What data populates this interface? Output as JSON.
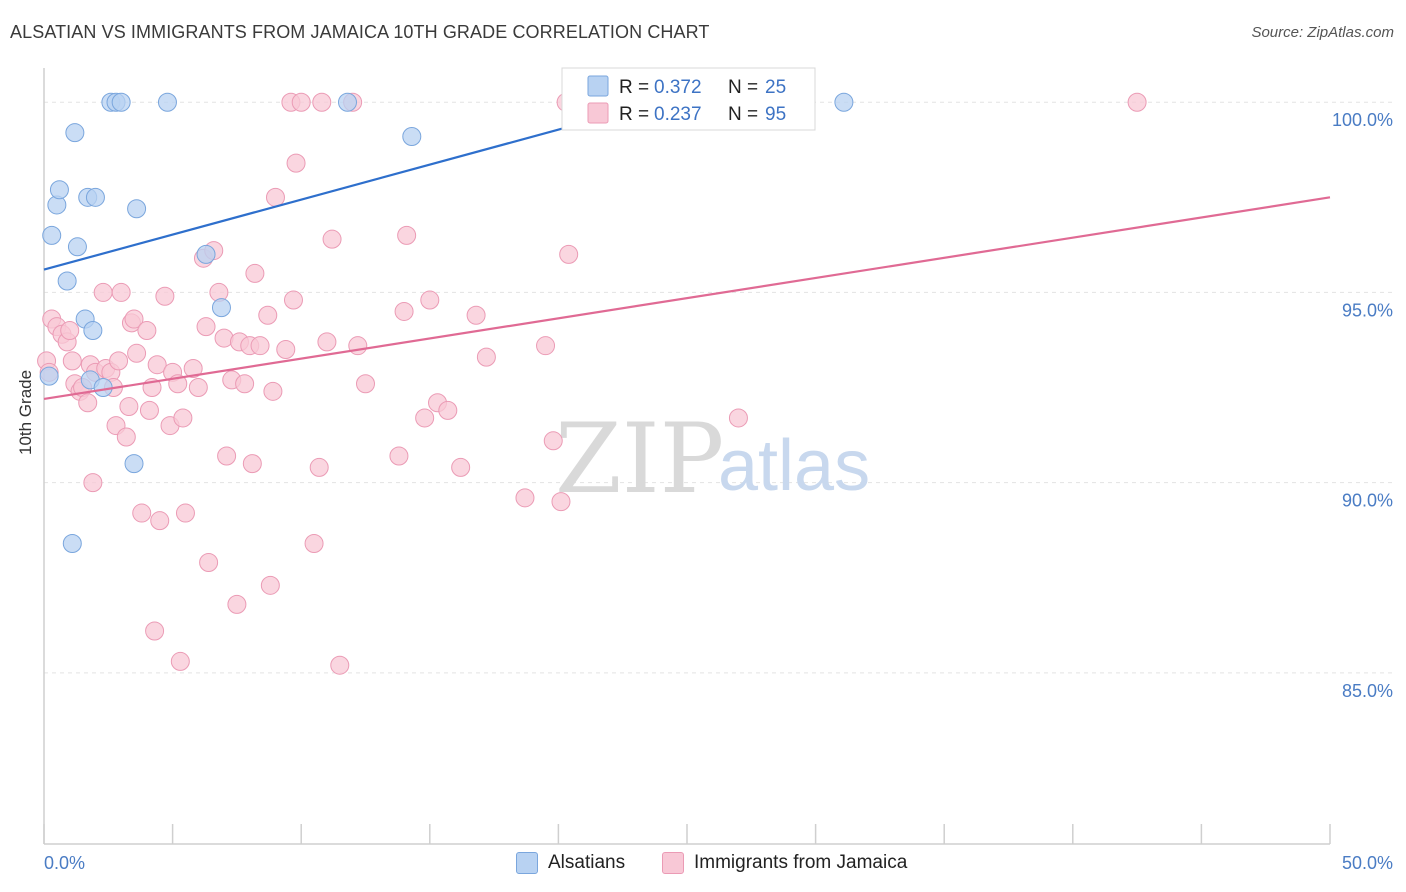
{
  "title": "ALSATIAN VS IMMIGRANTS FROM JAMAICA 10TH GRADE CORRELATION CHART",
  "source": "Source: ZipAtlas.com",
  "watermark": {
    "zip": "ZIP",
    "atlas": "atlas"
  },
  "colors": {
    "blue_fill": "#b8d2f2",
    "blue_stroke": "#7aa6dd",
    "blue_line": "#2e6fcc",
    "pink_fill": "#f8c8d6",
    "pink_stroke": "#eb9bb5",
    "pink_line": "#e06a94",
    "axis_text": "#4a7cc4",
    "grid": "#e3e3e3"
  },
  "legend": {
    "r_label": "R =",
    "n_label": "N =",
    "rows": [
      {
        "r": "0.372",
        "n": "25"
      },
      {
        "r": "0.237",
        "n": "95"
      }
    ]
  },
  "bottom_legend": [
    "Alsatians",
    "Immigrants from Jamaica"
  ],
  "chart_data": {
    "type": "scatter",
    "title": "ALSATIAN VS IMMIGRANTS FROM JAMAICA 10TH GRADE CORRELATION CHART",
    "xlabel": "",
    "ylabel": "10th Grade",
    "xlim": [
      0,
      50
    ],
    "ylim": [
      80.5,
      100.9
    ],
    "x_tick_labels": [
      "0.0%",
      "50.0%"
    ],
    "y_ticks": [
      85,
      90,
      95,
      100
    ],
    "y_tick_labels": [
      "85.0%",
      "90.0%",
      "95.0%",
      "100.0%"
    ],
    "grid": true,
    "series": [
      {
        "name": "Alsatians",
        "r": 0.372,
        "n": 25,
        "trend": {
          "x": [
            0,
            25
          ],
          "y": [
            95.6,
            100.2
          ]
        },
        "points": [
          [
            0.2,
            92.8
          ],
          [
            0.5,
            97.3
          ],
          [
            0.6,
            97.7
          ],
          [
            0.3,
            96.5
          ],
          [
            0.9,
            95.3
          ],
          [
            1.2,
            99.2
          ],
          [
            1.3,
            96.2
          ],
          [
            1.6,
            94.3
          ],
          [
            1.7,
            97.5
          ],
          [
            1.8,
            92.7
          ],
          [
            1.9,
            94.0
          ],
          [
            2.0,
            97.5
          ],
          [
            2.3,
            92.5
          ],
          [
            2.6,
            100.0
          ],
          [
            2.8,
            100.0
          ],
          [
            3.0,
            100.0
          ],
          [
            3.6,
            97.2
          ],
          [
            3.5,
            90.5
          ],
          [
            4.8,
            100.0
          ],
          [
            6.3,
            96.0
          ],
          [
            6.9,
            94.6
          ],
          [
            1.1,
            88.4
          ],
          [
            11.8,
            100.0
          ],
          [
            14.3,
            99.1
          ],
          [
            31.1,
            100.0
          ]
        ]
      },
      {
        "name": "Immigrants from Jamaica",
        "r": 0.237,
        "n": 95,
        "trend": {
          "x": [
            0,
            50
          ],
          "y": [
            92.2,
            97.5
          ]
        },
        "points": [
          [
            0.1,
            93.2
          ],
          [
            0.3,
            94.3
          ],
          [
            0.5,
            94.1
          ],
          [
            0.7,
            93.9
          ],
          [
            0.9,
            93.7
          ],
          [
            1.0,
            94.0
          ],
          [
            1.1,
            93.2
          ],
          [
            1.2,
            92.6
          ],
          [
            1.4,
            92.4
          ],
          [
            1.5,
            92.5
          ],
          [
            1.7,
            92.1
          ],
          [
            1.8,
            93.1
          ],
          [
            1.9,
            90.0
          ],
          [
            2.0,
            92.9
          ],
          [
            2.3,
            95.0
          ],
          [
            2.4,
            93.0
          ],
          [
            2.6,
            92.9
          ],
          [
            2.7,
            92.5
          ],
          [
            2.8,
            91.5
          ],
          [
            2.9,
            93.2
          ],
          [
            3.0,
            95.0
          ],
          [
            3.2,
            91.2
          ],
          [
            3.3,
            92.0
          ],
          [
            3.4,
            94.2
          ],
          [
            3.5,
            94.3
          ],
          [
            3.6,
            93.4
          ],
          [
            3.8,
            89.2
          ],
          [
            4.0,
            94.0
          ],
          [
            4.1,
            91.9
          ],
          [
            4.2,
            92.5
          ],
          [
            4.3,
            86.1
          ],
          [
            4.4,
            93.1
          ],
          [
            4.5,
            89.0
          ],
          [
            4.7,
            94.9
          ],
          [
            4.9,
            91.5
          ],
          [
            5.0,
            92.9
          ],
          [
            5.2,
            92.6
          ],
          [
            5.3,
            85.3
          ],
          [
            5.4,
            91.7
          ],
          [
            5.5,
            89.2
          ],
          [
            5.8,
            93.0
          ],
          [
            6.0,
            92.5
          ],
          [
            6.2,
            95.9
          ],
          [
            6.3,
            94.1
          ],
          [
            6.4,
            87.9
          ],
          [
            6.6,
            96.1
          ],
          [
            6.8,
            95.0
          ],
          [
            7.0,
            93.8
          ],
          [
            7.1,
            90.7
          ],
          [
            7.3,
            92.7
          ],
          [
            7.5,
            86.8
          ],
          [
            7.6,
            93.7
          ],
          [
            7.8,
            92.6
          ],
          [
            8.0,
            93.6
          ],
          [
            8.1,
            90.5
          ],
          [
            8.2,
            95.5
          ],
          [
            8.7,
            94.4
          ],
          [
            8.8,
            87.3
          ],
          [
            8.9,
            92.4
          ],
          [
            9.0,
            97.5
          ],
          [
            9.4,
            93.5
          ],
          [
            9.7,
            94.8
          ],
          [
            9.6,
            100.0
          ],
          [
            9.8,
            98.4
          ],
          [
            10.0,
            100.0
          ],
          [
            10.5,
            88.4
          ],
          [
            10.7,
            90.4
          ],
          [
            10.8,
            100.0
          ],
          [
            11.0,
            93.7
          ],
          [
            11.2,
            96.4
          ],
          [
            11.5,
            85.2
          ],
          [
            12.0,
            100.0
          ],
          [
            12.2,
            93.6
          ],
          [
            12.5,
            92.6
          ],
          [
            13.8,
            90.7
          ],
          [
            14.0,
            94.5
          ],
          [
            14.1,
            96.5
          ],
          [
            14.8,
            91.7
          ],
          [
            15.0,
            94.8
          ],
          [
            15.3,
            92.1
          ],
          [
            15.7,
            91.9
          ],
          [
            16.2,
            90.4
          ],
          [
            16.8,
            94.4
          ],
          [
            17.2,
            93.3
          ],
          [
            18.7,
            89.6
          ],
          [
            19.5,
            93.6
          ],
          [
            19.8,
            91.1
          ],
          [
            20.1,
            89.5
          ],
          [
            20.4,
            96.0
          ],
          [
            20.3,
            100.0
          ],
          [
            25.8,
            100.0
          ],
          [
            27.0,
            91.7
          ],
          [
            42.5,
            100.0
          ],
          [
            0.2,
            92.9
          ],
          [
            8.4,
            93.6
          ]
        ]
      }
    ]
  }
}
